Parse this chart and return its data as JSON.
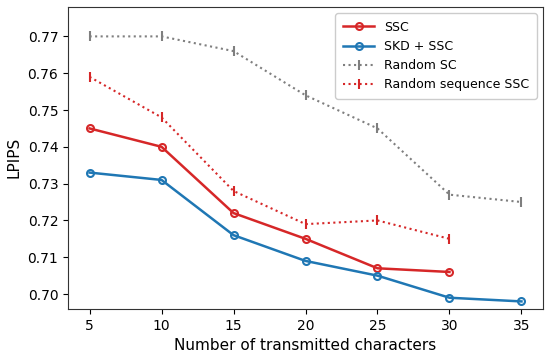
{
  "x": [
    5,
    10,
    15,
    20,
    25,
    30,
    35
  ],
  "ssc": [
    0.745,
    0.74,
    0.722,
    0.715,
    0.707,
    0.706,
    null
  ],
  "skd_ssc": [
    0.733,
    0.731,
    0.716,
    0.709,
    0.705,
    0.699,
    0.698
  ],
  "random_sc": [
    0.77,
    0.77,
    0.766,
    0.754,
    0.745,
    0.727,
    0.725
  ],
  "random_seq_ssc": [
    0.759,
    0.748,
    0.728,
    0.719,
    0.72,
    0.715,
    null
  ],
  "ssc_color": "#d62728",
  "skd_ssc_color": "#1f77b4",
  "random_sc_color": "#7f7f7f",
  "random_seq_ssc_color": "#d62728",
  "xlabel": "Number of transmitted characters",
  "ylabel": "LPIPS",
  "ylim": [
    0.696,
    0.778
  ],
  "yticks": [
    0.7,
    0.71,
    0.72,
    0.73,
    0.74,
    0.75,
    0.76,
    0.77
  ],
  "xticks": [
    5,
    10,
    15,
    20,
    25,
    30,
    35
  ],
  "legend_labels": [
    "SSC",
    "SKD + SSC",
    "Random SC",
    "Random sequence SSC"
  ],
  "figsize": [
    5.5,
    3.6
  ],
  "dpi": 100
}
